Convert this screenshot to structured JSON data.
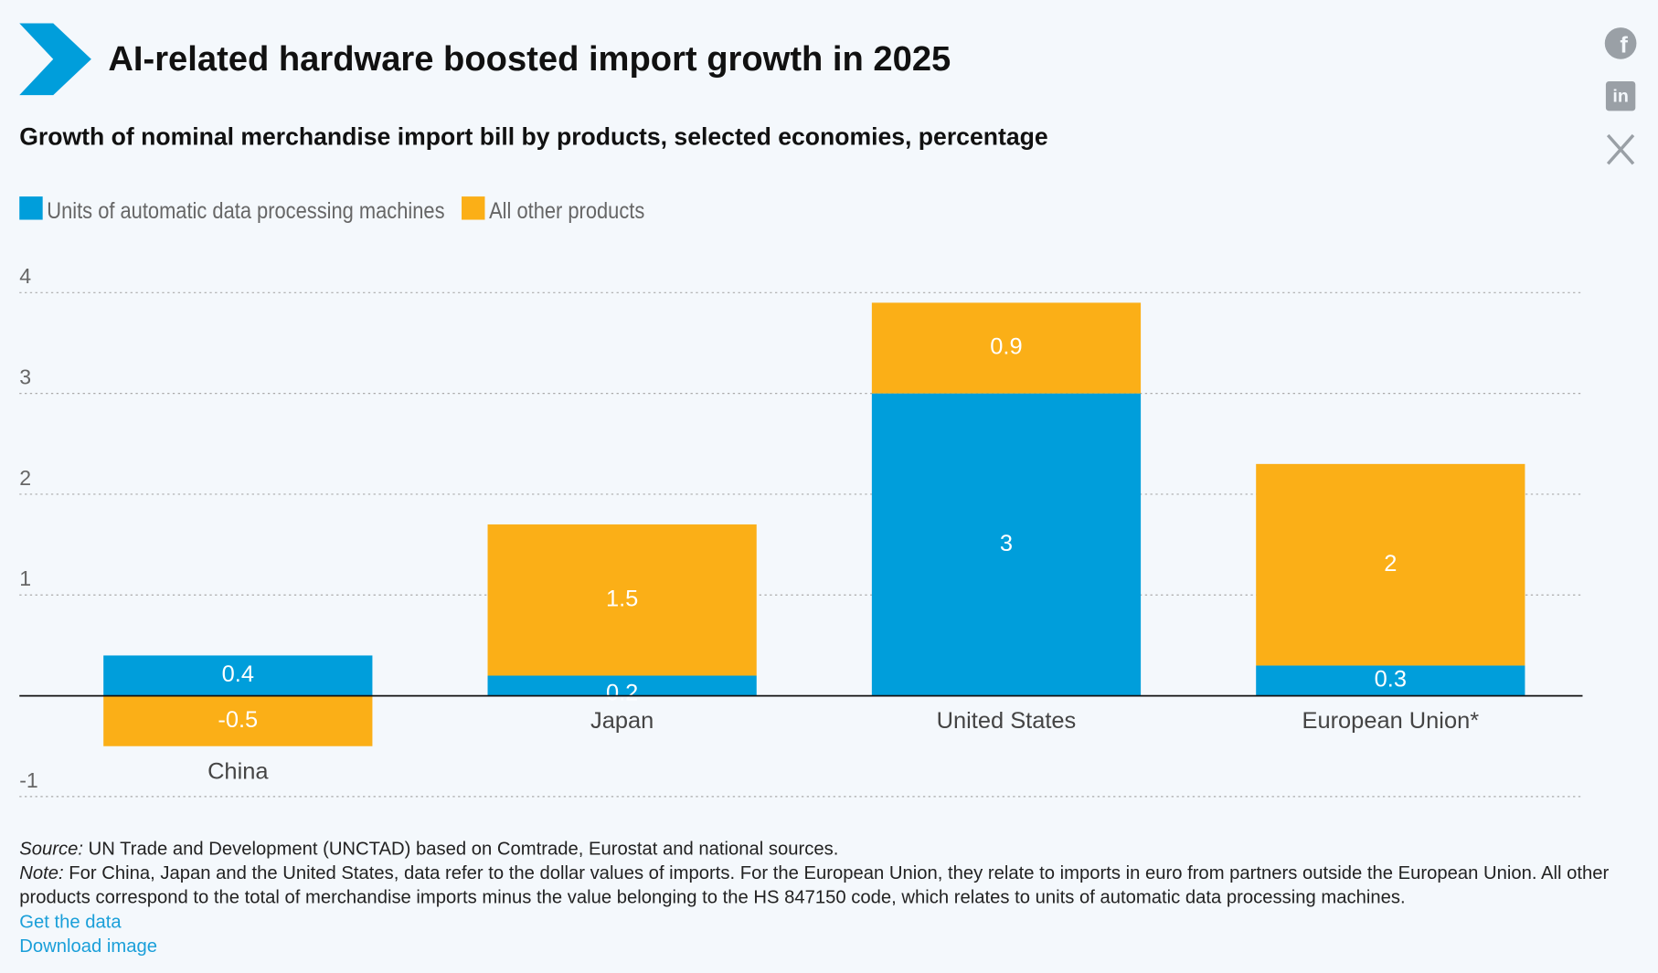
{
  "chart_data": {
    "type": "stacked-bar",
    "title": "AI-related hardware boosted import growth in 2025",
    "subtitle": "Growth of nominal merchandise import bill by products, selected economies, percentage",
    "categories": [
      "China",
      "Japan",
      "United States",
      "European Union*"
    ],
    "series": [
      {
        "name": "Units of automatic data processing machines",
        "color": "#009edb",
        "values": [
          0.4,
          0.2,
          3,
          0.3
        ]
      },
      {
        "name": "All other products",
        "color": "#fbaf17",
        "values": [
          -0.5,
          1.5,
          0.9,
          2
        ]
      }
    ],
    "ylim": [
      -1,
      4
    ],
    "yticks": [
      -1,
      1,
      2,
      3,
      4
    ],
    "grid": true,
    "legend": "top-left",
    "source": {
      "label": "Source:",
      "text": "UN Trade and Development (UNCTAD) based on Comtrade, Eurostat and national sources."
    },
    "note": {
      "label": "Note:",
      "text": "For China, Japan and the United States, data refer to the dollar values of imports. For the European Union, they relate to imports in euro from partners outside the European Union. All other products correspond to the total of merchandise imports minus the value belonging to the HS 847150 code, which relates to units of automatic data processing machines."
    },
    "links": [
      "Get the data",
      "Download image"
    ]
  }
}
